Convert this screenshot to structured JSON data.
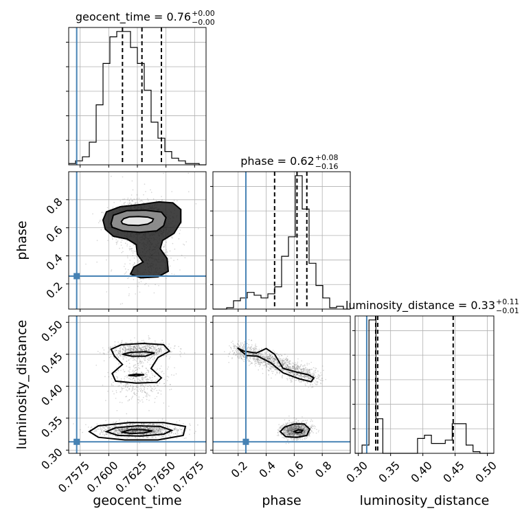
{
  "chart_data": {
    "type": "corner",
    "parameters": [
      "geocent_time",
      "phase",
      "luminosity_distance"
    ],
    "axis_labels": {
      "geocent_time": "geocent_time",
      "phase": "phase",
      "luminosity_distance": "luminosity_distance"
    },
    "ranges": {
      "geocent_time": [
        0.7565,
        0.7685
      ],
      "phase": [
        0.02,
        1.0
      ],
      "luminosity_distance": [
        0.295,
        0.51
      ]
    },
    "ticks": {
      "geocent_time": {
        "values": [
          0.7575,
          0.76,
          0.7625,
          0.765,
          0.7675
        ],
        "labels": [
          "0.7575",
          "0.7600",
          "0.7625",
          "0.7650",
          "0.7675"
        ]
      },
      "phase": {
        "values": [
          0.2,
          0.4,
          0.6,
          0.8
        ],
        "labels": [
          "0.2",
          "0.4",
          "0.6",
          "0.8"
        ]
      },
      "luminosity_distance": {
        "values": [
          0.3,
          0.35,
          0.4,
          0.45,
          0.5
        ],
        "labels": [
          "0.30",
          "0.35",
          "0.40",
          "0.45",
          "0.50"
        ]
      }
    },
    "truths": {
      "geocent_time": 0.7572,
      "phase": 0.255,
      "luminosity_distance": 0.313
    },
    "truth_color": "#4682b4",
    "titles": {
      "geocent_time": {
        "name": "geocent_time",
        "median": "0.76",
        "plus": "+0.00",
        "minus": "−0.00"
      },
      "phase": {
        "name": "phase",
        "median": "0.62",
        "plus": "+0.08",
        "minus": "−0.16"
      },
      "luminosity_distance": {
        "name": "luminosity_distance",
        "median": "0.33",
        "plus": "+0.11",
        "minus": "−0.01"
      }
    },
    "quantiles": {
      "geocent_time": [
        0.7612,
        0.7629,
        0.7646
      ],
      "phase": [
        0.46,
        0.62,
        0.69
      ],
      "luminosity_distance": [
        0.327,
        0.33,
        0.447
      ]
    },
    "histograms": {
      "geocent_time": {
        "edges": [
          0.7565,
          0.7571,
          0.7577,
          0.7583,
          0.7589,
          0.7595,
          0.7601,
          0.7607,
          0.7613,
          0.7619,
          0.7625,
          0.7631,
          0.7637,
          0.7643,
          0.7649,
          0.7655,
          0.7661,
          0.7667,
          0.7673,
          0.7679,
          0.7685
        ],
        "counts": [
          0.01,
          0.03,
          0.06,
          0.17,
          0.45,
          0.76,
          0.96,
          1.0,
          1.0,
          0.88,
          0.76,
          0.56,
          0.32,
          0.2,
          0.1,
          0.05,
          0.03,
          0.01,
          0.01,
          0.0
        ]
      },
      "phase": {
        "edges": [
          0.02,
          0.069,
          0.118,
          0.167,
          0.216,
          0.265,
          0.314,
          0.363,
          0.412,
          0.461,
          0.51,
          0.559,
          0.608,
          0.657,
          0.706,
          0.755,
          0.804,
          0.853,
          0.902,
          0.951,
          1.0
        ],
        "counts": [
          0.0,
          0.0,
          0.01,
          0.06,
          0.08,
          0.12,
          0.1,
          0.08,
          0.11,
          0.16,
          0.38,
          0.52,
          0.96,
          0.72,
          0.33,
          0.17,
          0.08,
          0.01,
          0.02,
          0.0
        ]
      },
      "luminosity_distance": {
        "edges": [
          0.295,
          0.30575,
          0.3165,
          0.32725,
          0.338,
          0.34875,
          0.3595,
          0.37025,
          0.381,
          0.39175,
          0.4025,
          0.41325,
          0.424,
          0.43475,
          0.4455,
          0.45625,
          0.467,
          0.47775,
          0.4885,
          0.49925,
          0.51
        ],
        "counts": [
          0.0,
          0.05,
          0.81,
          0.21,
          0.0,
          0.0,
          0.0,
          0.0,
          0.0,
          0.09,
          0.11,
          0.06,
          0.06,
          0.08,
          0.18,
          0.18,
          0.05,
          0.01,
          0.0,
          0.0
        ]
      }
    },
    "contours": {
      "phase|geocent_time": [
        [
          [
            0.7611,
            0.645
          ],
          [
            0.7613,
            0.665
          ],
          [
            0.7618,
            0.678
          ],
          [
            0.7626,
            0.68
          ],
          [
            0.7634,
            0.676
          ],
          [
            0.7639,
            0.663
          ],
          [
            0.7638,
            0.644
          ],
          [
            0.7634,
            0.626
          ],
          [
            0.7626,
            0.617
          ],
          [
            0.7617,
            0.619
          ],
          [
            0.7612,
            0.63
          ]
        ],
        [
          [
            0.7602,
            0.63
          ],
          [
            0.7604,
            0.69
          ],
          [
            0.7616,
            0.722
          ],
          [
            0.7632,
            0.725
          ],
          [
            0.7646,
            0.712
          ],
          [
            0.765,
            0.672
          ],
          [
            0.7648,
            0.615
          ],
          [
            0.7642,
            0.578
          ],
          [
            0.7627,
            0.568
          ],
          [
            0.7612,
            0.578
          ],
          [
            0.7603,
            0.604
          ]
        ],
        [
          [
            0.7595,
            0.655
          ],
          [
            0.7598,
            0.714
          ],
          [
            0.761,
            0.75
          ],
          [
            0.7628,
            0.766
          ],
          [
            0.7644,
            0.785
          ],
          [
            0.7656,
            0.778
          ],
          [
            0.7663,
            0.73
          ],
          [
            0.7663,
            0.64
          ],
          [
            0.7657,
            0.56
          ],
          [
            0.7647,
            0.51
          ],
          [
            0.7645,
            0.45
          ],
          [
            0.7651,
            0.38
          ],
          [
            0.7652,
            0.29
          ],
          [
            0.7643,
            0.25
          ],
          [
            0.7628,
            0.243
          ],
          [
            0.7619,
            0.27
          ],
          [
            0.7622,
            0.32
          ],
          [
            0.763,
            0.355
          ],
          [
            0.7625,
            0.41
          ],
          [
            0.7624,
            0.48
          ],
          [
            0.7616,
            0.52
          ],
          [
            0.7604,
            0.54
          ],
          [
            0.7597,
            0.59
          ]
        ]
      ],
      "luminosity_distance|geocent_time": [
        [
          [
            0.7611,
            0.328
          ],
          [
            0.7619,
            0.332
          ],
          [
            0.763,
            0.332
          ],
          [
            0.7638,
            0.33
          ],
          [
            0.7631,
            0.327
          ],
          [
            0.762,
            0.326
          ]
        ],
        [
          [
            0.7598,
            0.329
          ],
          [
            0.7606,
            0.335
          ],
          [
            0.7625,
            0.338
          ],
          [
            0.7645,
            0.337
          ],
          [
            0.7655,
            0.331
          ],
          [
            0.7648,
            0.325
          ],
          [
            0.7628,
            0.322
          ],
          [
            0.7608,
            0.323
          ]
        ],
        [
          [
            0.7583,
            0.329
          ],
          [
            0.7591,
            0.338
          ],
          [
            0.7618,
            0.343
          ],
          [
            0.7648,
            0.343
          ],
          [
            0.7667,
            0.337
          ],
          [
            0.7665,
            0.323
          ],
          [
            0.7643,
            0.316
          ],
          [
            0.7614,
            0.316
          ],
          [
            0.7591,
            0.32
          ]
        ],
        [
          [
            0.7612,
            0.45
          ],
          [
            0.7619,
            0.453
          ],
          [
            0.7632,
            0.454
          ],
          [
            0.764,
            0.452
          ],
          [
            0.7632,
            0.447
          ],
          [
            0.762,
            0.447
          ]
        ],
        [
          [
            0.7602,
            0.458
          ],
          [
            0.7611,
            0.465
          ],
          [
            0.763,
            0.467
          ],
          [
            0.7648,
            0.465
          ],
          [
            0.7653,
            0.455
          ],
          [
            0.7643,
            0.445
          ],
          [
            0.7637,
            0.428
          ],
          [
            0.7646,
            0.413
          ],
          [
            0.7642,
            0.406
          ],
          [
            0.7624,
            0.405
          ],
          [
            0.7606,
            0.408
          ],
          [
            0.7603,
            0.42
          ],
          [
            0.7612,
            0.434
          ],
          [
            0.7605,
            0.447
          ]
        ],
        [
          [
            0.7617,
            0.417
          ],
          [
            0.7624,
            0.419
          ],
          [
            0.7631,
            0.418
          ],
          [
            0.7624,
            0.416
          ]
        ]
      ],
      "luminosity_distance|phase": [
        [
          [
            0.6,
            0.329
          ],
          [
            0.63,
            0.332
          ],
          [
            0.66,
            0.331
          ],
          [
            0.65,
            0.328
          ],
          [
            0.62,
            0.327
          ]
        ],
        [
          [
            0.5,
            0.329
          ],
          [
            0.53,
            0.336
          ],
          [
            0.6,
            0.341
          ],
          [
            0.67,
            0.341
          ],
          [
            0.71,
            0.333
          ],
          [
            0.69,
            0.323
          ],
          [
            0.62,
            0.32
          ],
          [
            0.54,
            0.321
          ]
        ],
        [
          [
            0.195,
            0.46
          ],
          [
            0.24,
            0.455
          ],
          [
            0.33,
            0.452
          ],
          [
            0.4,
            0.459
          ],
          [
            0.46,
            0.45
          ],
          [
            0.52,
            0.428
          ],
          [
            0.62,
            0.422
          ],
          [
            0.7,
            0.418
          ],
          [
            0.74,
            0.413
          ],
          [
            0.72,
            0.407
          ],
          [
            0.63,
            0.412
          ],
          [
            0.52,
            0.421
          ],
          [
            0.43,
            0.437
          ],
          [
            0.34,
            0.447
          ],
          [
            0.26,
            0.448
          ]
        ]
      ]
    }
  }
}
